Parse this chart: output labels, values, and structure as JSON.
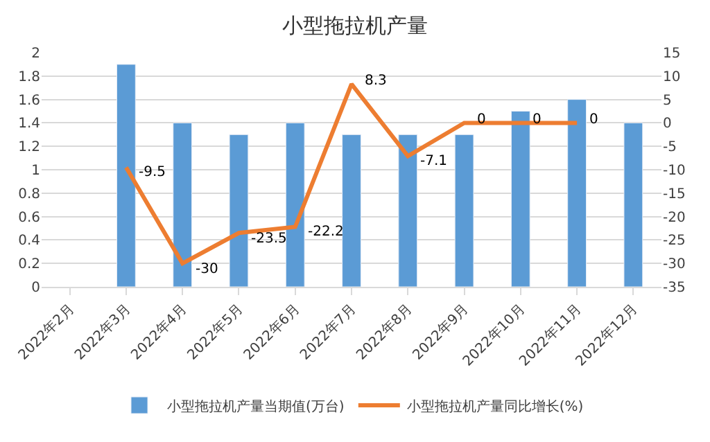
{
  "chart_data": {
    "type": "bar",
    "title": "小型拖拉机产量",
    "categories": [
      "2022年2月",
      "2022年3月",
      "2022年4月",
      "2022年5月",
      "2022年6月",
      "2022年7月",
      "2022年8月",
      "2022年9月",
      "2022年10月",
      "2022年11月",
      "2022年12月"
    ],
    "series": [
      {
        "name": "小型拖拉机产量当期值(万台)",
        "color": "#5b9bd5",
        "values": [
          null,
          1.9,
          1.4,
          1.3,
          1.4,
          1.3,
          1.3,
          1.3,
          1.5,
          1.6,
          1.4
        ]
      },
      {
        "name": "小型拖拉机产量同比增长(%)",
        "type": "line",
        "axis": "y2",
        "color": "#ed7d31",
        "data_labels": true,
        "values": [
          null,
          -9.5,
          -30,
          -23.5,
          -22.2,
          8.3,
          -7.1,
          0,
          0,
          0,
          null
        ]
      }
    ],
    "ylim": [
      0,
      2
    ],
    "yticks": [
      0,
      0.2,
      0.4,
      0.6,
      0.8,
      1,
      1.2,
      1.4,
      1.6,
      1.8,
      2
    ],
    "y2lim": [
      -35,
      15
    ],
    "y2ticks": [
      -35,
      -30,
      -25,
      -20,
      -15,
      -10,
      -5,
      0,
      5,
      10,
      15
    ],
    "grid": "y",
    "legend": "bottom",
    "marker": "none"
  }
}
